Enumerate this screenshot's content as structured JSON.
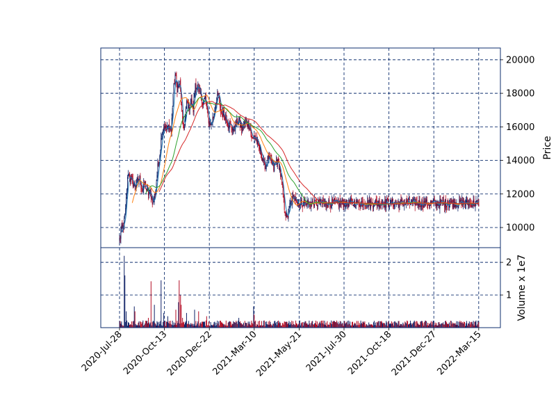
{
  "chart_data": {
    "type": "candlestick",
    "x_tick_labels": [
      "2020-Jul-28",
      "2020-Oct-13",
      "2020-Dec-22",
      "2021-Mar-10",
      "2021-May-21",
      "2021-Jul-30",
      "2021-Oct-18",
      "2021-Dec-27",
      "2022-Mar-15"
    ],
    "price_panel": {
      "ylabel": "Price",
      "ylim": [
        8800,
        20700
      ],
      "yticks": [
        10000,
        12000,
        14000,
        16000,
        18000,
        20000
      ],
      "ytick_labels": [
        "10000",
        "12000",
        "14000",
        "16000",
        "18000",
        "20000"
      ],
      "grid": true,
      "close_anchors": [
        [
          0,
          9300
        ],
        [
          3,
          9900
        ],
        [
          6,
          10100
        ],
        [
          9,
          11000
        ],
        [
          11,
          12400
        ],
        [
          13,
          13300
        ],
        [
          15,
          13000
        ],
        [
          18,
          12800
        ],
        [
          22,
          12500
        ],
        [
          26,
          12700
        ],
        [
          30,
          12900
        ],
        [
          34,
          12200
        ],
        [
          38,
          12600
        ],
        [
          42,
          12000
        ],
        [
          46,
          12100
        ],
        [
          50,
          11400
        ],
        [
          54,
          12300
        ],
        [
          57,
          13600
        ],
        [
          60,
          14400
        ],
        [
          63,
          15700
        ],
        [
          66,
          16000
        ],
        [
          70,
          15800
        ],
        [
          74,
          16100
        ],
        [
          77,
          15700
        ],
        [
          80,
          18000
        ],
        [
          83,
          19100
        ],
        [
          86,
          18300
        ],
        [
          90,
          18600
        ],
        [
          94,
          16200
        ],
        [
          97,
          16000
        ],
        [
          100,
          17500
        ],
        [
          104,
          17200
        ],
        [
          107,
          17500
        ],
        [
          110,
          17000
        ],
        [
          113,
          18600
        ],
        [
          116,
          18300
        ],
        [
          120,
          18000
        ],
        [
          124,
          17400
        ],
        [
          128,
          17700
        ],
        [
          132,
          16500
        ],
        [
          136,
          16100
        ],
        [
          140,
          16600
        ],
        [
          144,
          17600
        ],
        [
          148,
          18000
        ],
        [
          150,
          17000
        ],
        [
          154,
          16800
        ],
        [
          158,
          16600
        ],
        [
          162,
          16200
        ],
        [
          166,
          16100
        ],
        [
          170,
          15800
        ],
        [
          174,
          16200
        ],
        [
          178,
          16400
        ],
        [
          182,
          15900
        ],
        [
          186,
          16200
        ],
        [
          190,
          16300
        ],
        [
          194,
          16100
        ],
        [
          198,
          15200
        ],
        [
          202,
          15500
        ],
        [
          206,
          15000
        ],
        [
          210,
          14600
        ],
        [
          214,
          14000
        ],
        [
          218,
          13600
        ],
        [
          222,
          14200
        ],
        [
          226,
          14000
        ],
        [
          230,
          13500
        ],
        [
          234,
          14000
        ],
        [
          238,
          13700
        ],
        [
          242,
          12700
        ],
        [
          246,
          11200
        ],
        [
          250,
          10500
        ],
        [
          254,
          11300
        ],
        [
          258,
          11700
        ],
        [
          262,
          11900
        ],
        [
          266,
          11500
        ],
        [
          268,
          11450
        ]
      ],
      "moving_averages": [
        {
          "window": 5,
          "color": "#1f77b4"
        },
        {
          "window": 20,
          "color": "#ff7f0e"
        },
        {
          "window": 40,
          "color": "#2ca02c"
        },
        {
          "window": 60,
          "color": "#d62728"
        }
      ]
    },
    "volume_panel": {
      "ylabel": "Volume x 1e7",
      "ylim": [
        0,
        2.45
      ],
      "yticks": [
        1,
        2
      ],
      "ytick_labels": [
        "1",
        "2"
      ],
      "grid": true,
      "spikes": [
        [
          7,
          2.2
        ],
        [
          8,
          1.6
        ],
        [
          10,
          0.5
        ],
        [
          22,
          0.65
        ],
        [
          23,
          0.5
        ],
        [
          43,
          0.3
        ],
        [
          47,
          1.42
        ],
        [
          52,
          0.7
        ],
        [
          62,
          1.45
        ],
        [
          66,
          0.45
        ],
        [
          72,
          0.35
        ],
        [
          84,
          0.55
        ],
        [
          88,
          0.78
        ],
        [
          89,
          1.45
        ],
        [
          91,
          0.99
        ],
        [
          92,
          0.7
        ],
        [
          94,
          0.3
        ],
        [
          100,
          0.45
        ],
        [
          112,
          0.55
        ],
        [
          118,
          0.5
        ],
        [
          130,
          0.35
        ],
        [
          178,
          0.3
        ],
        [
          200,
          0.65
        ],
        [
          201,
          0.4
        ],
        [
          230,
          0.12
        ]
      ]
    },
    "colors": {
      "up": "#0f2167",
      "down": "#b30b23",
      "grid": "#0d2e6e",
      "frame": "#0d2e6e"
    }
  }
}
